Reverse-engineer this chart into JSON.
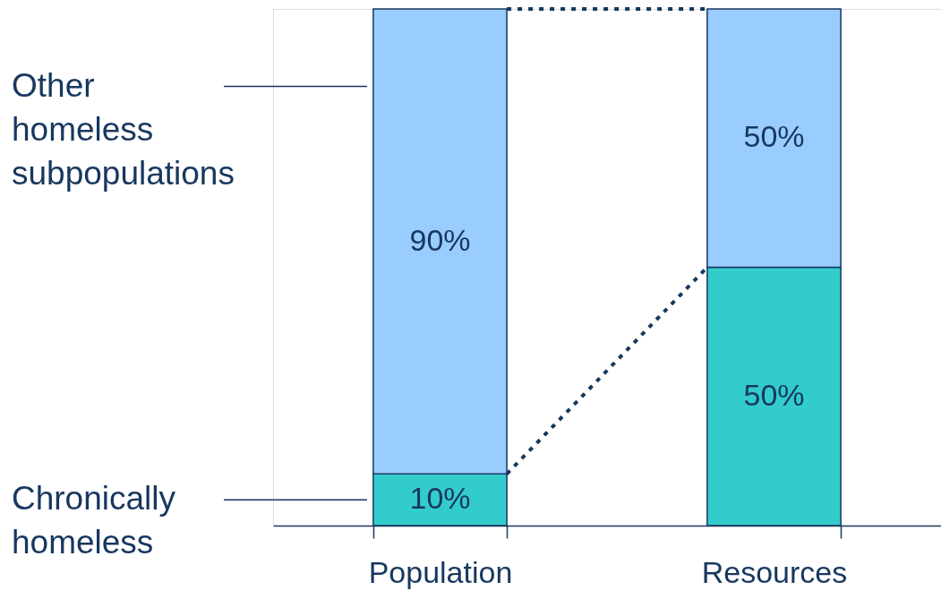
{
  "chart_data": {
    "type": "bar",
    "stacked": true,
    "categories": [
      "Population",
      "Resources"
    ],
    "series": [
      {
        "name": "Chronically homeless",
        "color": "#33cccc",
        "values": [
          10,
          50
        ],
        "value_labels": [
          "10%",
          "50%"
        ]
      },
      {
        "name": "Other homeless subpopulations",
        "color": "#99ccff",
        "values": [
          90,
          50
        ],
        "value_labels": [
          "90%",
          "50%"
        ]
      }
    ],
    "ylim": [
      0,
      100
    ],
    "legend": "left"
  }
}
